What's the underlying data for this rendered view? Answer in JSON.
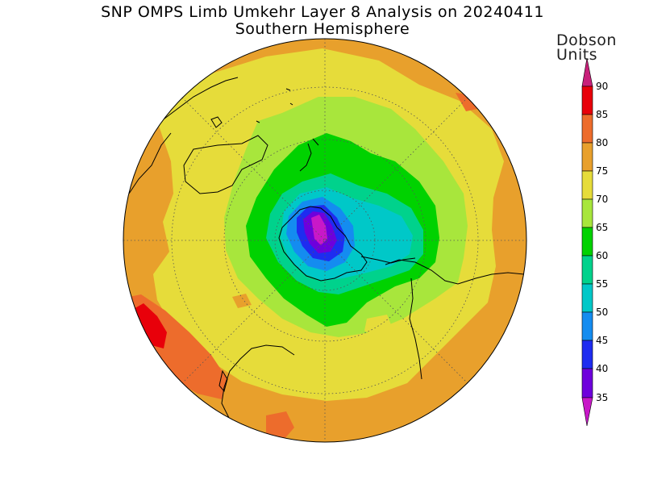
{
  "title": {
    "line1": "SNP OMPS Limb Umkehr Layer 8 Analysis on 20240411",
    "line2": "Southern Hemisphere"
  },
  "legend": {
    "unit_line1": "Dobson",
    "unit_line2": "Units",
    "ticks": [
      "90",
      "85",
      "80",
      "75",
      "70",
      "65",
      "60",
      "55",
      "50",
      "45",
      "40",
      "35"
    ],
    "colors": [
      "#c8207a",
      "#e8000a",
      "#ed6c2c",
      "#e8a02c",
      "#e6dc3a",
      "#a8e63c",
      "#00d200",
      "#00d28c",
      "#00c8c8",
      "#148cf0",
      "#1e2cf0",
      "#6e00dc",
      "#c818c8"
    ]
  },
  "map": {
    "projection": "south-polar-stereographic",
    "field_colors": {
      "dark_orange": "#e8a02c",
      "red_orange": "#ed6c2c",
      "red": "#e8000a",
      "yellow": "#e6dc3a",
      "light_green": "#a8e63c",
      "green": "#00d200",
      "teal": "#00d28c",
      "cyan": "#00c8c8",
      "blue": "#148cf0",
      "dark_blue": "#1e2cf0",
      "purple": "#6e00dc",
      "magenta": "#c818c8"
    }
  }
}
